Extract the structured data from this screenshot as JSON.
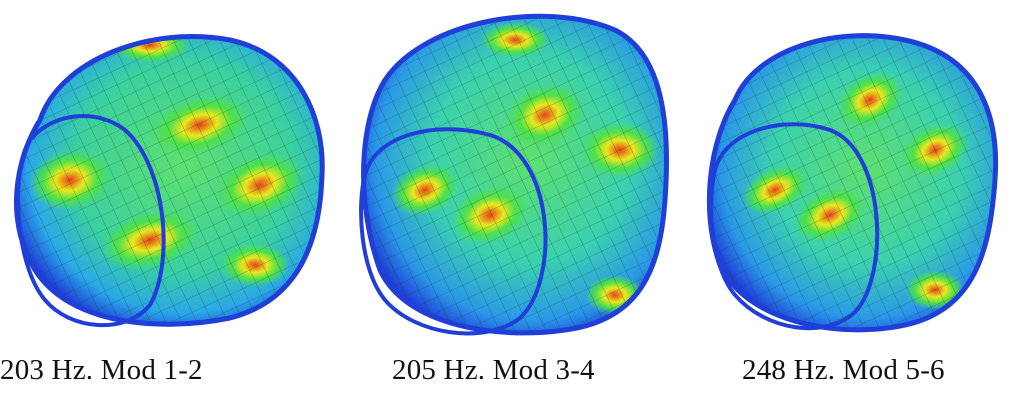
{
  "panels": [
    {
      "caption": "203 Hz. Mod 1-2",
      "shape": "deformed-cylinder-mode-shape"
    },
    {
      "caption": "205 Hz. Mod 3-4",
      "shape": "deformed-cylinder-mode-shape"
    },
    {
      "caption": "248 Hz. Mod 5-6",
      "shape": "deformed-cylinder-mode-shape"
    }
  ],
  "colors": {
    "low": "#1f3fd8",
    "mid_low": "#2fd6e8",
    "mid": "#4ee04a",
    "mid_high": "#e8e820",
    "high": "#e8401a"
  }
}
